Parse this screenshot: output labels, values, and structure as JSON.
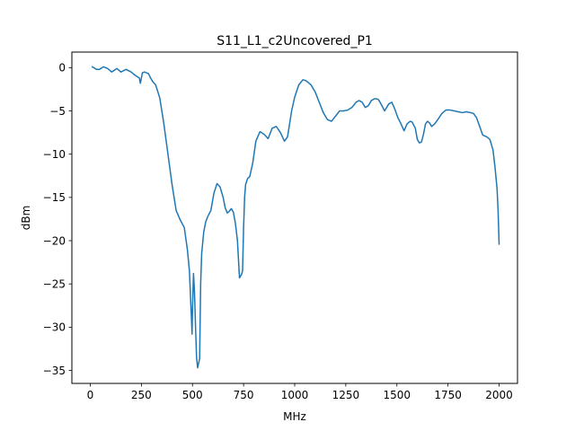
{
  "chart_data": {
    "type": "line",
    "title": "S11_L1_c2Uncovered_P1",
    "xlabel": "MHz",
    "ylabel": "dBm",
    "xlim": [
      -90,
      2090
    ],
    "ylim": [
      -36.5,
      1.8
    ],
    "xticks": [
      0,
      250,
      500,
      750,
      1000,
      1250,
      1500,
      1750,
      2000
    ],
    "xtick_labels": [
      "0",
      "250",
      "500",
      "750",
      "1000",
      "1250",
      "1500",
      "1750",
      "2000"
    ],
    "yticks": [
      0,
      -5,
      -10,
      -15,
      -20,
      -25,
      -30,
      -35
    ],
    "ytick_labels": [
      "0",
      "−5",
      "−10",
      "−15",
      "−20",
      "−25",
      "−30",
      "−35"
    ],
    "grid": false,
    "series": [
      {
        "color": "#1f77b4",
        "x": [
          10,
          30,
          45,
          65,
          85,
          105,
          130,
          150,
          175,
          200,
          220,
          240,
          245,
          250,
          255,
          265,
          285,
          295,
          305,
          320,
          340,
          360,
          380,
          400,
          420,
          440,
          460,
          475,
          485,
          495,
          498,
          500,
          505,
          510,
          515,
          520,
          525,
          530,
          535,
          540,
          545,
          555,
          565,
          575,
          590,
          605,
          620,
          635,
          650,
          660,
          670,
          680,
          690,
          700,
          710,
          720,
          730,
          740,
          745,
          750,
          755,
          760,
          770,
          780,
          795,
          810,
          830,
          850,
          870,
          890,
          910,
          930,
          950,
          965,
          975,
          985,
          1000,
          1020,
          1040,
          1055,
          1065,
          1080,
          1100,
          1120,
          1140,
          1160,
          1180,
          1200,
          1220,
          1240,
          1260,
          1280,
          1300,
          1315,
          1330,
          1345,
          1360,
          1375,
          1390,
          1400,
          1410,
          1420,
          1440,
          1460,
          1475,
          1490,
          1505,
          1520,
          1535,
          1550,
          1565,
          1575,
          1590,
          1600,
          1610,
          1620,
          1630,
          1640,
          1650,
          1660,
          1670,
          1685,
          1700,
          1720,
          1740,
          1760,
          1780,
          1800,
          1820,
          1840,
          1860,
          1875,
          1890,
          1905,
          1920,
          1940,
          1955,
          1970,
          1980,
          1990,
          1995,
          2000
        ],
        "y": [
          0.1,
          -0.2,
          -0.2,
          0.1,
          -0.1,
          -0.5,
          -0.1,
          -0.5,
          -0.2,
          -0.5,
          -0.9,
          -1.2,
          -1.8,
          -1.2,
          -0.6,
          -0.5,
          -0.7,
          -1.2,
          -1.6,
          -2.0,
          -3.5,
          -6.5,
          -10.0,
          -13.5,
          -16.5,
          -17.6,
          -18.5,
          -21.0,
          -23.5,
          -29.0,
          -30.8,
          -28.0,
          -23.8,
          -26.0,
          -30.0,
          -33.5,
          -34.7,
          -34.2,
          -33.6,
          -25.0,
          -21.5,
          -19.0,
          -17.8,
          -17.2,
          -16.5,
          -14.5,
          -13.4,
          -13.8,
          -15.0,
          -16.2,
          -16.8,
          -16.6,
          -16.3,
          -16.7,
          -18.0,
          -20.0,
          -24.3,
          -23.9,
          -23.5,
          -18.5,
          -15.0,
          -13.5,
          -12.8,
          -12.6,
          -11.0,
          -8.5,
          -7.4,
          -7.7,
          -8.2,
          -7.0,
          -6.8,
          -7.5,
          -8.5,
          -8.0,
          -6.5,
          -5.0,
          -3.4,
          -2.0,
          -1.4,
          -1.5,
          -1.7,
          -2.0,
          -2.8,
          -4.0,
          -5.2,
          -6.0,
          -6.2,
          -5.6,
          -5.0,
          -5.0,
          -4.9,
          -4.6,
          -4.0,
          -3.8,
          -4.0,
          -4.6,
          -4.4,
          -3.8,
          -3.6,
          -3.6,
          -3.7,
          -4.1,
          -5.0,
          -4.2,
          -4.0,
          -4.8,
          -5.8,
          -6.5,
          -7.3,
          -6.5,
          -6.2,
          -6.3,
          -7.0,
          -8.3,
          -8.7,
          -8.6,
          -7.7,
          -6.5,
          -6.2,
          -6.4,
          -6.8,
          -6.5,
          -6.0,
          -5.3,
          -4.9,
          -4.9,
          -5.0,
          -5.1,
          -5.2,
          -5.1,
          -5.2,
          -5.3,
          -5.8,
          -6.8,
          -7.8,
          -8.0,
          -8.3,
          -9.5,
          -11.5,
          -14.0,
          -16.5,
          -20.4
        ]
      }
    ]
  }
}
